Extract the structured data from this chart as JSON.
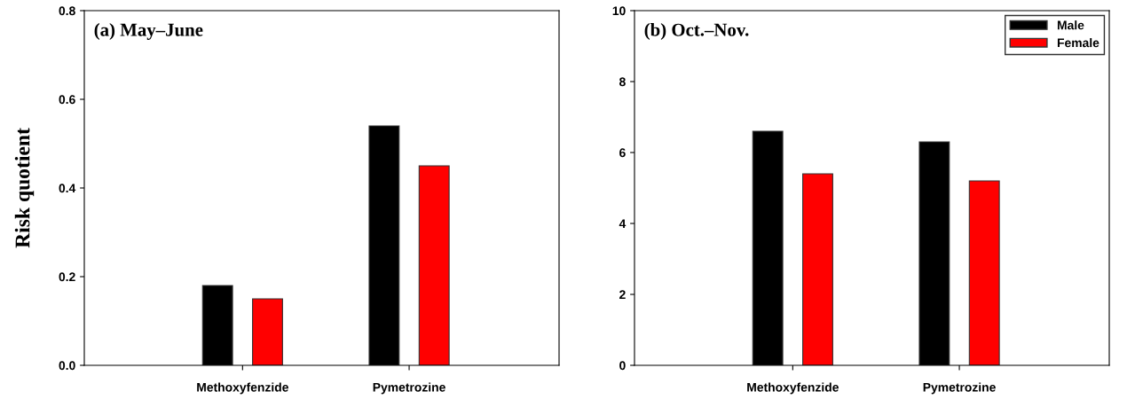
{
  "chart_data": [
    {
      "type": "bar",
      "title": "(a) May–June",
      "ylabel": "Risk quotient",
      "categories": [
        "Methoxyfenzide",
        "Pymetrozine"
      ],
      "series": [
        {
          "color": "#000000",
          "values": [
            0.18,
            0.54
          ]
        },
        {
          "color": "#ff0000",
          "values": [
            0.15,
            0.45
          ]
        }
      ],
      "ylim": [
        0,
        0.8
      ],
      "yticks": [
        {
          "value": 0,
          "label": "0.0"
        },
        {
          "value": 0.2,
          "label": "0.2"
        },
        {
          "value": 0.4,
          "label": "0.4"
        },
        {
          "value": 0.6,
          "label": "0.6"
        },
        {
          "value": 0.8,
          "label": "0.8"
        }
      ],
      "grid": false,
      "legend": false
    },
    {
      "type": "bar",
      "title": "(b) Oct.–Nov.",
      "categories": [
        "Methoxyfenzide",
        "Pymetrozine"
      ],
      "series": [
        {
          "name": "Male",
          "color": "#000000",
          "values": [
            6.6,
            6.3
          ]
        },
        {
          "name": "Female",
          "color": "#ff0000",
          "values": [
            5.4,
            5.2
          ]
        }
      ],
      "ylim": [
        0,
        10
      ],
      "yticks": [
        0,
        2,
        4,
        6,
        8,
        10
      ],
      "grid": false,
      "legend": "top right"
    }
  ]
}
